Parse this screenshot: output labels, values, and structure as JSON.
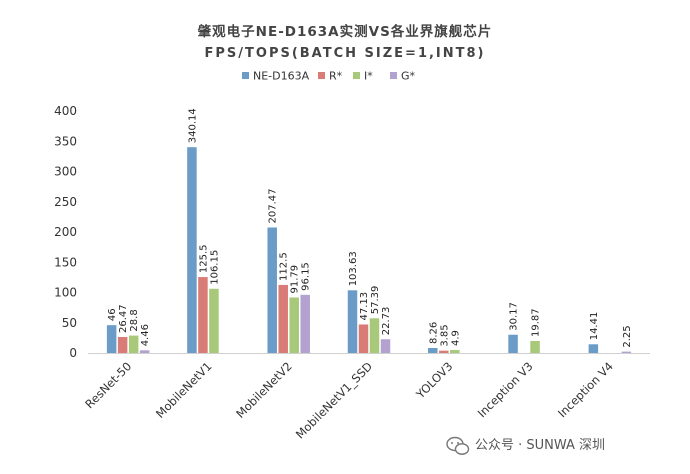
{
  "chart_data": {
    "type": "bar",
    "title": "肇观电子NE-D163A实测VS各业界旗舰芯片",
    "subtitle": "FPS/TOPS(BATCH SIZE=1,INT8)",
    "categories": [
      "ResNet-50",
      "MobileNetV1",
      "MobileNetV2",
      "MobileNetV1_SSD",
      "YOLOV3",
      "Inception V3",
      "Inception V4"
    ],
    "series": [
      {
        "name": "NE-D163A",
        "color": "#6b9cc8",
        "values": [
          46,
          340.14,
          207.47,
          103.63,
          8.26,
          30.17,
          14.41
        ],
        "labels": [
          "46",
          "340.14",
          "207.47",
          "103.63",
          "8.26",
          "30.17",
          "14.41"
        ]
      },
      {
        "name": "R*",
        "color": "#d97b77",
        "values": [
          26.47,
          125.5,
          112.5,
          47.13,
          3.85,
          null,
          null
        ],
        "labels": [
          "26.47",
          "125.5",
          "112.5",
          "47.13",
          "3.85",
          "",
          ""
        ]
      },
      {
        "name": "I*",
        "color": "#a8c97a",
        "values": [
          28.8,
          106.15,
          91.79,
          57.39,
          4.9,
          19.87,
          null
        ],
        "labels": [
          "28.8",
          "106.15",
          "91.79",
          "57.39",
          "4.9",
          "19.87",
          ""
        ]
      },
      {
        "name": "G*",
        "color": "#b3a2cf",
        "values": [
          4.46,
          null,
          96.15,
          22.73,
          null,
          null,
          2.25
        ],
        "labels": [
          "4.46",
          "",
          "96.15",
          "22.73",
          "",
          "",
          "2.25"
        ]
      }
    ],
    "ylim": [
      0,
      400
    ],
    "yticks": [
      0,
      50,
      100,
      150,
      200,
      250,
      300,
      350,
      400
    ],
    "xlabel": "",
    "ylabel": "",
    "grid": false,
    "legend_position": "top"
  },
  "watermark": {
    "text": "公众号 · SUNWA 深圳",
    "icon": "wechat-icon"
  }
}
